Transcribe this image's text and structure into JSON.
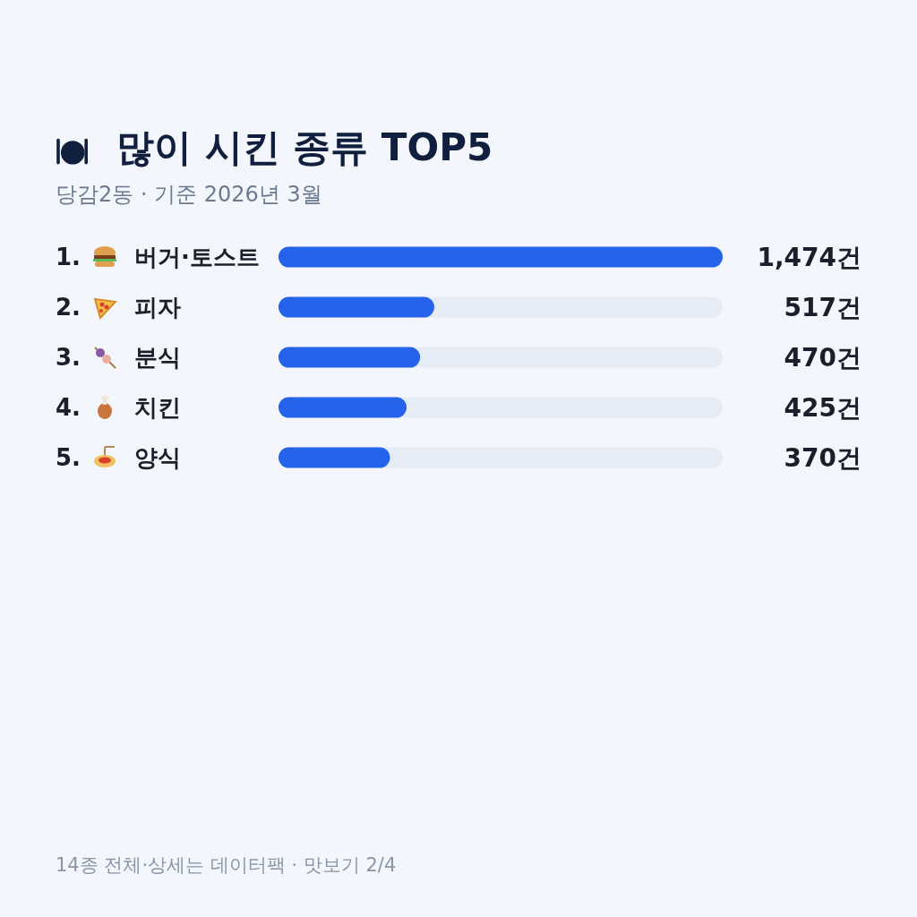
{
  "chart_data": {
    "type": "bar",
    "orientation": "horizontal",
    "title": "많이 시킨 종류 TOP5",
    "subtitle": "당감2동 · 기준 2026년 3월",
    "categories": [
      "1. 버거·토스트",
      "2. 피자",
      "3. 분식",
      "4. 치킨",
      "5. 양식"
    ],
    "values": [
      1474,
      517,
      470,
      425,
      370
    ],
    "value_labels": [
      "1,474건",
      "517건",
      "470건",
      "425건",
      "370건"
    ],
    "color": "#2563eb",
    "annotations": [
      "14종 전체·상세는 데이터팩 · 맛보기 2/4"
    ]
  }
}
